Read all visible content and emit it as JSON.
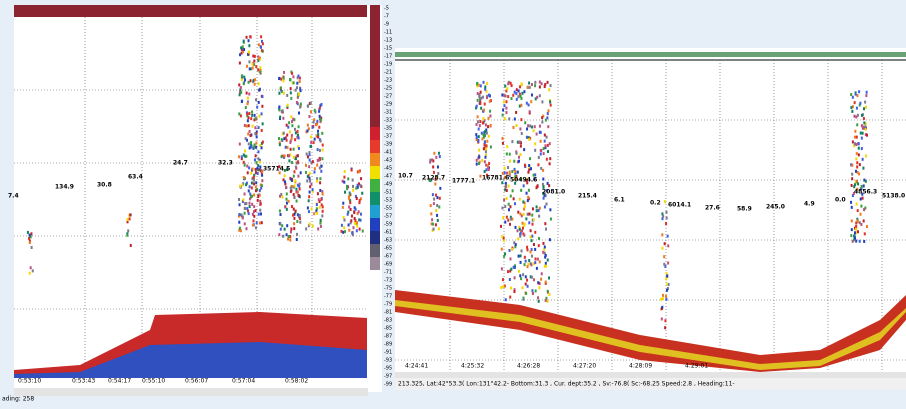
{
  "left_panel": {
    "labels": [
      "7.4",
      "134.9",
      "30.8",
      "63.4",
      "24.7",
      "32.3",
      "35714.5"
    ],
    "time_labels": [
      "0:53:10",
      "0:53:43",
      "0:54:17",
      "0:55:10",
      "0:56:07",
      "0:57:04",
      "0:58:02"
    ],
    "scale_labels": [
      "-5",
      "-7",
      "-9",
      "-11",
      "-13",
      "-15",
      "-17",
      "-19",
      "-21",
      "-23",
      "-25",
      "-27",
      "-29",
      "-31",
      "-33",
      "-35",
      "-37",
      "-39",
      "-41",
      "-43",
      "-45",
      "-47",
      "-49",
      "-51",
      "-53",
      "-55",
      "-57",
      "-59",
      "-61",
      "-63",
      "-65",
      "-67",
      "-69",
      "-71",
      "-73",
      "-75",
      "-77",
      "-79",
      "-81",
      "-83",
      "-85",
      "-87",
      "-89",
      "-91",
      "-93",
      "-95",
      "-97",
      "-99"
    ],
    "status": "ading: 258"
  },
  "right_panel": {
    "labels": [
      "10.7",
      "2128.7",
      "1777.1",
      "16781.6",
      "50494.6",
      "2081.0",
      "215.4",
      "6.1",
      "0.2",
      "6014.1",
      "27.6",
      "58.9",
      "245.0",
      "4.9",
      "0.0",
      "4856.3",
      "5138.0"
    ],
    "time_labels": [
      "4:24:41",
      "4:25:32",
      "4:26:28",
      "4:27:20",
      "4:28:09",
      "4:29:01"
    ],
    "status": "213.325, Lat:42°53.3( Lon:131°42.2- Bottom:31.3 , Cur. dept:35.2 , Sv:-76.8( Sc:-68.25 Speed:2.8 , Heading:11-"
  }
}
